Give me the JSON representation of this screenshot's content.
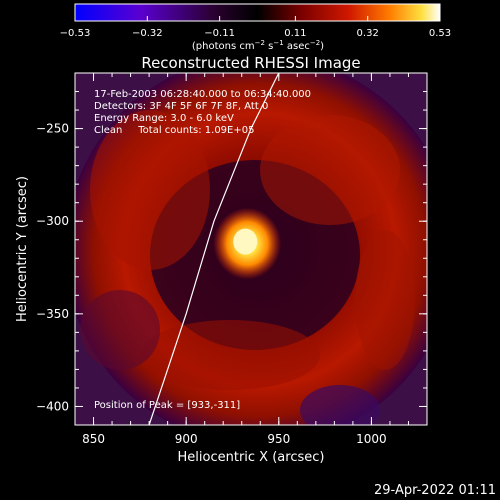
{
  "chart_data": {
    "type": "heatmap",
    "title": "Reconstructed RHESSI Image",
    "xlabel": "Heliocentric X (arcsec)",
    "ylabel": "Heliocentric Y (arcsec)",
    "xlim": [
      840,
      1030
    ],
    "ylim": [
      -410,
      -220
    ],
    "x_ticks": [
      850,
      900,
      950,
      1000
    ],
    "x_tick_labels": [
      "850",
      "900",
      "950",
      "1000"
    ],
    "y_ticks": [
      -400,
      -350,
      -300,
      -250
    ],
    "y_tick_labels": [
      "−400",
      "−350",
      "−300",
      "−250"
    ],
    "colorbar": {
      "ticks": [
        -0.53,
        -0.32,
        -0.11,
        0.11,
        0.32,
        0.53
      ],
      "tick_labels": [
        "−0.53",
        "−0.32",
        "−0.11",
        "0.11",
        "0.32",
        "0.53"
      ],
      "units_label": "(photons cm",
      "units_exp1": "−2",
      "units_mid": " s",
      "units_exp2": "−1",
      "units_mid2": " asec",
      "units_exp3": "−2",
      "units_end": ")",
      "colors": [
        "#0000ff",
        "#6a00c8",
        "#3a003a",
        "#000000",
        "#550000",
        "#c01000",
        "#ff6000",
        "#ffd020",
        "#ffffff"
      ]
    },
    "annotations": [
      "17-Feb-2003 06:28:40.000 to 06:34:40.000",
      "Detectors: 3F 4F 5F 6F 7F 8F, Att 0",
      "Energy Range: 3.0 - 6.0 keV",
      "Clean     Total counts: 1.09E+05"
    ],
    "peak_label": "Position of Peak = [933,-311]",
    "peak": [
      933,
      -311
    ],
    "limb_curve": [
      [
        880,
        -410
      ],
      [
        900,
        -350
      ],
      [
        915,
        -300
      ],
      [
        935,
        -250
      ],
      [
        950,
        -220
      ]
    ],
    "grid": false
  },
  "footer_date": "29-Apr-2022 01:11"
}
